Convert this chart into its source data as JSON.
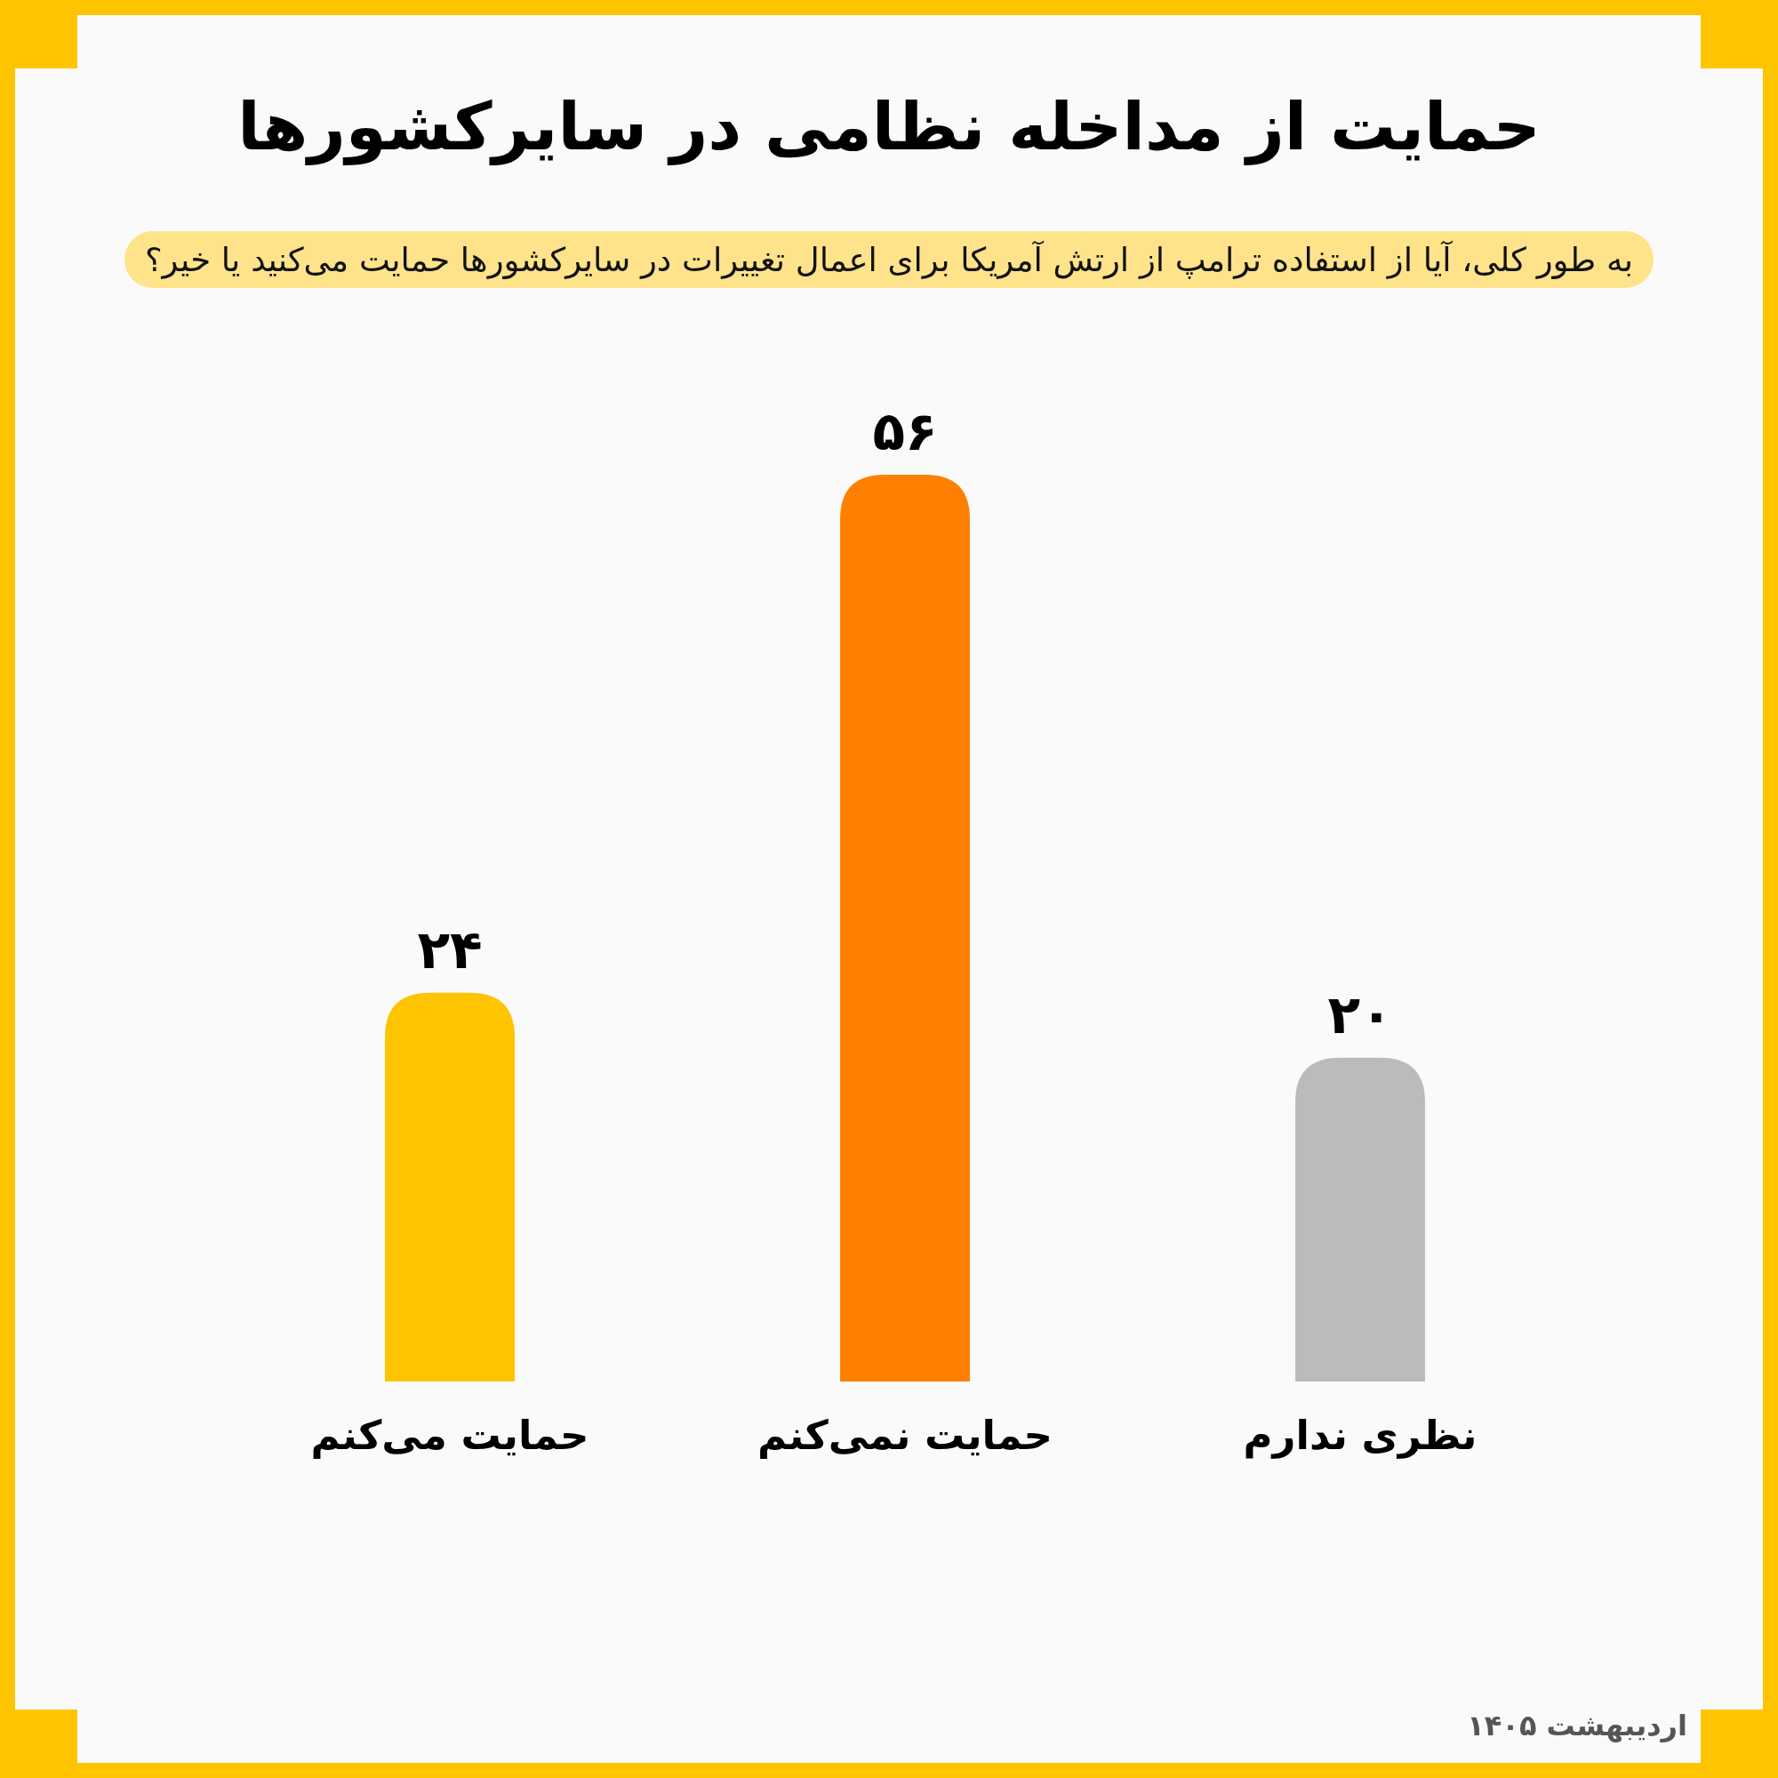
{
  "chart_data": {
    "type": "bar",
    "title": "حمایت از مداخله نظامی در سایرکشورها",
    "subtitle": "به طور کلی، آیا از استفاده ترامپ از ارتش آمریکا برای اعمال تغییرات در سایرکشورها حمایت می‌کنید یا خیر؟",
    "categories": [
      "حمایت می‌کنم",
      "حمایت نمی‌کنم",
      "نظری ندارم"
    ],
    "values": [
      24,
      56,
      20
    ],
    "colors": [
      "#ffc400",
      "#ff7f00",
      "#bbbbbb"
    ],
    "value_labels": [
      "۲۴",
      "۵۶",
      "۲۰"
    ],
    "annotations": [
      "اردیبهشت ۱۴۰۵"
    ]
  }
}
